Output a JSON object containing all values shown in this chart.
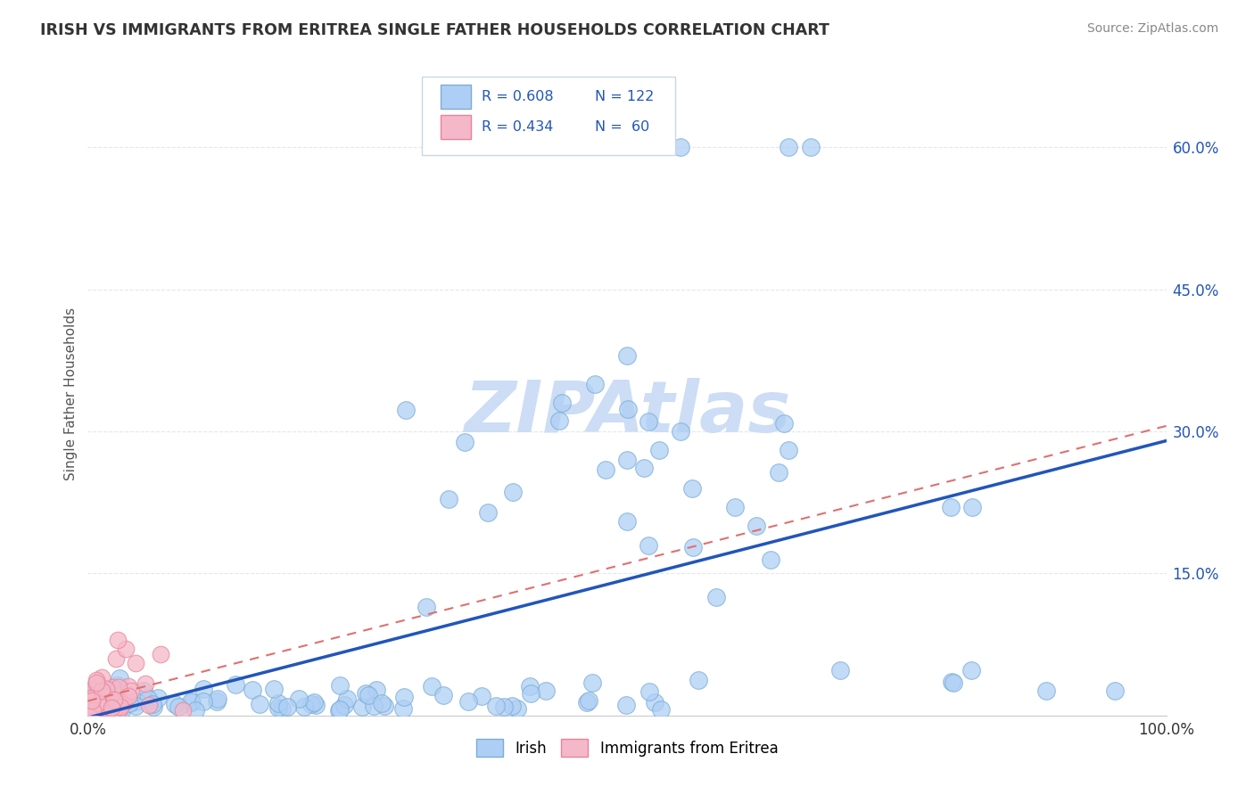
{
  "title": "IRISH VS IMMIGRANTS FROM ERITREA SINGLE FATHER HOUSEHOLDS CORRELATION CHART",
  "source": "Source: ZipAtlas.com",
  "ylabel": "Single Father Households",
  "xlim": [
    0.0,
    1.0
  ],
  "ylim": [
    0.0,
    0.68
  ],
  "yticks": [
    0.0,
    0.15,
    0.3,
    0.45,
    0.6
  ],
  "ytick_labels": [
    "",
    "15.0%",
    "30.0%",
    "45.0%",
    "60.0%"
  ],
  "legend_r1": "R = 0.608",
  "legend_n1": "N = 122",
  "legend_r2": "R = 0.434",
  "legend_n2": "N =  60",
  "irish_color": "#aecff5",
  "eritrea_color": "#f5b8c8",
  "irish_edge_color": "#7badd4",
  "eritrea_edge_color": "#e8839a",
  "regression_blue": "#2255bb",
  "regression_pink": "#e07070",
  "watermark_color": "#ccddf5",
  "background_color": "#ffffff",
  "grid_color": "#e0e8f0",
  "title_color": "#333333",
  "source_color": "#888888",
  "label_color": "#555555",
  "tick_color": "#2255bb"
}
